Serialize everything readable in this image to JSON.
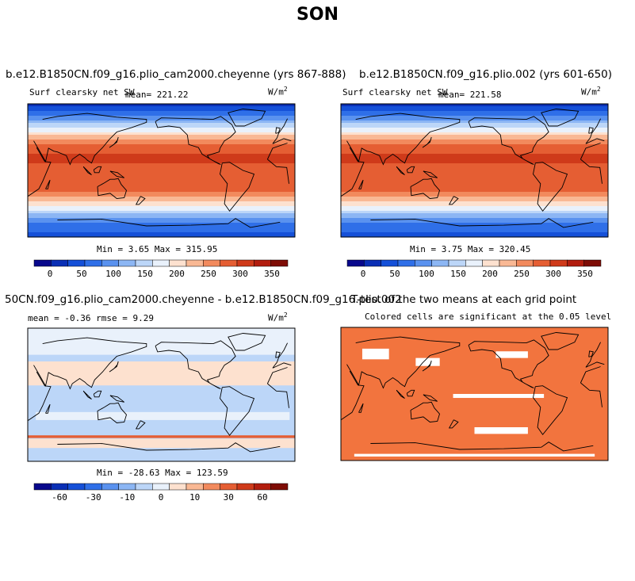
{
  "page": {
    "title": "SON"
  },
  "panels": [
    {
      "title": "b.e12.B1850CN.f09_g16.plio_cam2000.cheyenne (yrs 867-888)",
      "variable": "Surf clearsky net SW",
      "mean_label": "mean= 221.22",
      "units": "W/m",
      "units_exp": "2",
      "minmax": "Min =   3.65 Max = 315.95"
    },
    {
      "title": "b.e12.B1850CN.f09_g16.plio.002 (yrs 601-650)",
      "variable": "Surf clearsky net SW",
      "mean_label": "mean= 221.58",
      "units": "W/m",
      "units_exp": "2",
      "minmax": "Min =   3.75 Max = 320.45"
    },
    {
      "title": "50CN.f09_g16.plio_cam2000.cheyenne - b.e12.B1850CN.f09_g16.plio.002",
      "stats": "mean =  -0.36    rmse =   9.29",
      "units": "W/m",
      "units_exp": "2",
      "minmax": "Min = -28.63 Max = 123.59"
    },
    {
      "title": "T-test of the two means at each grid point",
      "subtitle": "Colored cells are significant at the 0.05 level"
    }
  ],
  "chart_data": [
    {
      "type": "heatmap",
      "title": "b.e12.B1850CN.f09_g16.plio_cam2000.cheyenne (yrs 867-888)",
      "variable": "Surf clearsky net SW",
      "units": "W/m2",
      "mean": 221.22,
      "min": 3.65,
      "max": 315.95,
      "colorbar": {
        "ticks": [
          0,
          50,
          100,
          150,
          200,
          250,
          300,
          350
        ],
        "range": [
          -25,
          375
        ],
        "colors": [
          "#08088c",
          "#0a2fb5",
          "#1550d8",
          "#2f6fe8",
          "#5a92ef",
          "#8cb6f4",
          "#bcd6f8",
          "#e9f1fb",
          "#fde1cf",
          "#f9b894",
          "#f28a5d",
          "#e55e33",
          "#cf3a1a",
          "#b21d0e",
          "#7e0c05"
        ]
      },
      "zonal_mean_by_lat": {
        "lat": [
          -90,
          -75,
          -60,
          -45,
          -30,
          -15,
          0,
          15,
          30,
          45,
          60,
          75,
          90
        ],
        "value": [
          40,
          70,
          130,
          200,
          270,
          290,
          280,
          300,
          290,
          230,
          150,
          70,
          20
        ]
      }
    },
    {
      "type": "heatmap",
      "title": "b.e12.B1850CN.f09_g16.plio.002 (yrs 601-650)",
      "variable": "Surf clearsky net SW",
      "units": "W/m2",
      "mean": 221.58,
      "min": 3.75,
      "max": 320.45,
      "colorbar": {
        "ticks": [
          0,
          50,
          100,
          150,
          200,
          250,
          300,
          350
        ],
        "range": [
          -25,
          375
        ],
        "colors": [
          "#08088c",
          "#0a2fb5",
          "#1550d8",
          "#2f6fe8",
          "#5a92ef",
          "#8cb6f4",
          "#bcd6f8",
          "#e9f1fb",
          "#fde1cf",
          "#f9b894",
          "#f28a5d",
          "#e55e33",
          "#cf3a1a",
          "#b21d0e",
          "#7e0c05"
        ]
      },
      "zonal_mean_by_lat": {
        "lat": [
          -90,
          -75,
          -60,
          -45,
          -30,
          -15,
          0,
          15,
          30,
          45,
          60,
          75,
          90
        ],
        "value": [
          40,
          70,
          130,
          200,
          270,
          290,
          280,
          300,
          290,
          230,
          150,
          70,
          20
        ]
      }
    },
    {
      "type": "heatmap",
      "title": "50CN.f09_g16.plio_cam2000.cheyenne - b.e12.B1850CN.f09_g16.plio.002",
      "units": "W/m2",
      "mean": -0.36,
      "rmse": 9.29,
      "min": -28.63,
      "max": 123.59,
      "colorbar": {
        "ticks": [
          -60,
          -30,
          -10,
          0,
          10,
          30,
          60
        ],
        "colors": [
          "#08088c",
          "#0a2fb5",
          "#1550d8",
          "#2f6fe8",
          "#5a92ef",
          "#8cb6f4",
          "#bcd6f8",
          "#e9f1fb",
          "#fde1cf",
          "#f9b894",
          "#f28a5d",
          "#e55e33",
          "#cf3a1a",
          "#b21d0e",
          "#7e0c05"
        ]
      }
    },
    {
      "type": "heatmap",
      "title": "T-test of the two means at each grid point",
      "subtitle": "Colored cells are significant at the 0.05 level",
      "significant_color": "#f2743e"
    }
  ]
}
